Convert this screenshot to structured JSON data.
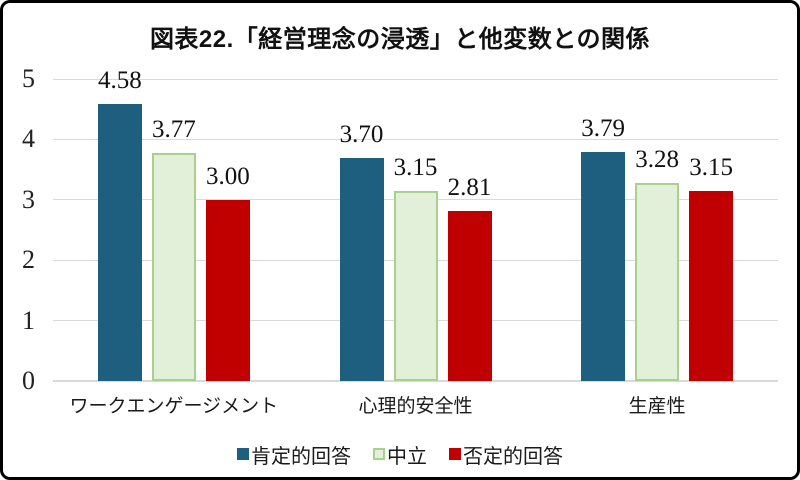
{
  "chart_data": {
    "type": "bar",
    "title": "図表22.「経営理念の浸透」と他変数との関係",
    "categories": [
      "ワークエンゲージメント",
      "心理的安全性",
      "生産性"
    ],
    "series": [
      {
        "name": "肯定的回答",
        "fill": "#1E5F80",
        "stroke": "#1E5F80",
        "values": [
          4.58,
          3.7,
          3.79
        ],
        "labels": [
          "4.58",
          "3.70",
          "3.79"
        ]
      },
      {
        "name": "中立",
        "fill": "#E2F0D9",
        "stroke": "#A9D18E",
        "values": [
          3.77,
          3.15,
          3.28
        ],
        "labels": [
          "3.77",
          "3.15",
          "3.28"
        ]
      },
      {
        "name": "否定的回答",
        "fill": "#C00000",
        "stroke": "#C00000",
        "values": [
          3.0,
          2.81,
          3.15
        ],
        "labels": [
          "3.00",
          "2.81",
          "3.15"
        ]
      }
    ],
    "xlabel": "",
    "ylabel": "",
    "ylim": [
      0,
      5
    ],
    "yticks": [
      0,
      1,
      2,
      3,
      4,
      5
    ],
    "grid": true,
    "gridline_color": "#D9D9D9",
    "legend_position": "bottom"
  }
}
